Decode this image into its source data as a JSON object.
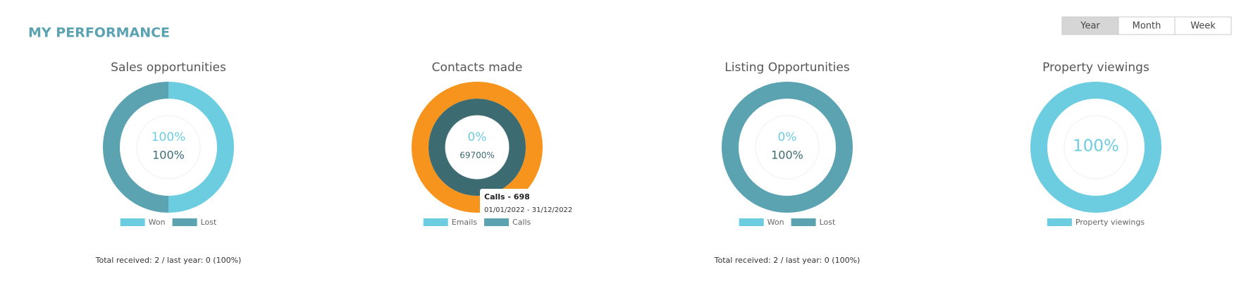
{
  "header": {
    "title": "MY PERFORMANCE",
    "periods": [
      "Year",
      "Month",
      "Week"
    ],
    "active_period": 0
  },
  "charts": [
    {
      "type": "donut",
      "title": "Sales opportunities",
      "center_top": "100%",
      "center_bottom": "100%",
      "series": [
        {
          "name": "Won",
          "color": "#6dcde0",
          "value": 1
        },
        {
          "name": "Lost",
          "color": "#5ba3b0",
          "value": 1
        }
      ],
      "footer": "Total received: 2 / last year: 0 (100%)"
    },
    {
      "type": "donut",
      "title": "Contacts made",
      "center_top": "0%",
      "center_bottom": "69700%",
      "series": [
        {
          "name": "Emails",
          "color": "#6dcde0",
          "value": 0
        },
        {
          "name": "Calls",
          "color": "#5ba3b0",
          "value": 698
        }
      ],
      "hover": {
        "series": 1,
        "color": "#f7941d",
        "fill": "#3d6b72"
      },
      "tooltip": {
        "title": "Calls - 698",
        "subtitle": "01/01/2022 - 31/12/2022"
      }
    },
    {
      "type": "donut",
      "title": "Listing Opportunities",
      "center_top": "0%",
      "center_bottom": "100%",
      "series": [
        {
          "name": "Won",
          "color": "#6dcde0",
          "value": 0
        },
        {
          "name": "Lost",
          "color": "#5ba3b0",
          "value": 2
        }
      ],
      "footer": "Total received: 2 / last year: 0 (100%)"
    },
    {
      "type": "donut",
      "title": "Property viewings",
      "center_top": "100%",
      "series": [
        {
          "name": "Property viewings",
          "color": "#6dcde0",
          "value": 1
        }
      ]
    }
  ]
}
